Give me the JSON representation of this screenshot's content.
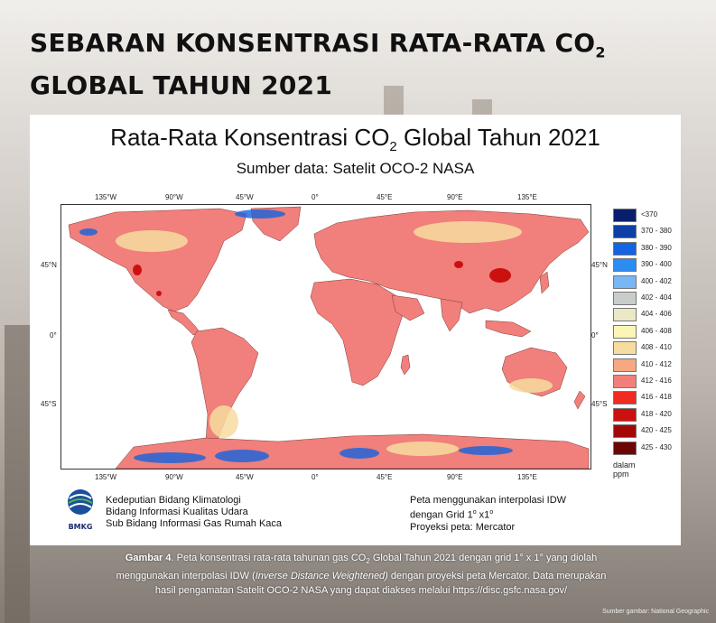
{
  "page": {
    "headline_line1": "SEBARAN KONSENTRASI RATA-RATA CO",
    "headline_sub": "2",
    "headline_line2": "GLOBAL TAHUN 2021"
  },
  "map": {
    "title_pre": "Rata-Rata Konsentrasi CO",
    "title_sub": "2",
    "title_post": " Global Tahun 2021",
    "subtitle": "Sumber data: Satelit OCO-2 NASA",
    "lon_ticks": [
      "135°W",
      "90°W",
      "45°W",
      "0°",
      "45°E",
      "90°E",
      "135°E"
    ],
    "lat_ticks": [
      "45°N",
      "0°",
      "45°S"
    ]
  },
  "legend": {
    "items": [
      {
        "label": "<370",
        "color": "#0a1f6b"
      },
      {
        "label": "370 - 380",
        "color": "#0d3fa6"
      },
      {
        "label": "380 - 390",
        "color": "#1463e0"
      },
      {
        "label": "390 - 400",
        "color": "#2b8cf2"
      },
      {
        "label": "400 - 402",
        "color": "#79b6f4"
      },
      {
        "label": "402 - 404",
        "color": "#c9cdc9"
      },
      {
        "label": "404 - 406",
        "color": "#ebe8c6"
      },
      {
        "label": "406 - 408",
        "color": "#fbf5b8"
      },
      {
        "label": "408 - 410",
        "color": "#f7dca0"
      },
      {
        "label": "410 - 412",
        "color": "#f5a882"
      },
      {
        "label": "412 - 416",
        "color": "#f17f7b"
      },
      {
        "label": "416 - 418",
        "color": "#ef2b22"
      },
      {
        "label": "418 - 420",
        "color": "#cc1010"
      },
      {
        "label": "420 - 425",
        "color": "#a30808"
      },
      {
        "label": "425 - 430",
        "color": "#6e0505"
      }
    ],
    "unit": "dalam ppm"
  },
  "footer": {
    "org_line1": "Kedeputian Bidang Klimatologi",
    "org_line2": "Bidang Informasi Kualitas Udara",
    "org_line3": "Sub Bidang Informasi Gas Rumah Kaca",
    "logo_text": "BMKG",
    "note_line1": "Peta menggunakan interpolasi IDW",
    "note_line2_pre": "dengan Grid 1",
    "note_line2_mid": " x1",
    "note_line3": "Proyeksi peta: Mercator"
  },
  "caption": {
    "bold": "Gambar 4",
    "text1": ". Peta konsentrasi rata-rata tahunan gas CO",
    "sub": "2",
    "text2": " Global Tahun 2021 dengan grid 1° x 1° yang diolah",
    "line2_pre": "menggunakan interpolasi IDW (",
    "line2_italic": "Inverse Distance Weightened)",
    "line2_post": " dengan proyeksi peta Mercator. Data merupakan",
    "line3": "hasil pengamatan Satelit OCO-2 NASA yang dapat diakses melalui https://disc.gsfc.nasa.gov/"
  },
  "credit": "Sumber gambar: National Geographic",
  "colors": {
    "ocean": "#ffffff",
    "land_main": "#f17f7b",
    "high": "#ef2b22"
  }
}
